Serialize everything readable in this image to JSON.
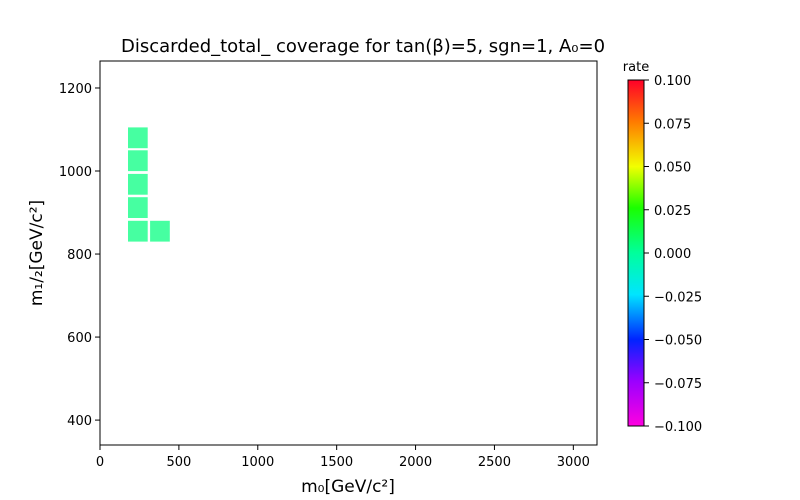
{
  "chart_data": {
    "type": "heatmap",
    "title": "Discarded_total_ coverage for tan(β)=5, sgn=1, A₀=0",
    "xlabel": "m₀[GeV/c²]",
    "ylabel": "m₁/₂[GeV/c²]",
    "xlim": [
      0,
      3150
    ],
    "ylim": [
      340,
      1265
    ],
    "xticks": [
      0,
      500,
      1000,
      1500,
      2000,
      2500,
      3000
    ],
    "yticks": [
      400,
      600,
      800,
      1000,
      1200
    ],
    "cell_size": [
      125,
      50
    ],
    "cells": [
      {
        "x": 240,
        "y": 1080,
        "value": 0.0
      },
      {
        "x": 240,
        "y": 1025,
        "value": 0.0
      },
      {
        "x": 240,
        "y": 968,
        "value": 0.0
      },
      {
        "x": 240,
        "y": 912,
        "value": 0.0
      },
      {
        "x": 240,
        "y": 855,
        "value": 0.0
      },
      {
        "x": 380,
        "y": 855,
        "value": 0.0
      }
    ],
    "colorbar": {
      "title": "rate",
      "range": [
        -0.1,
        0.1
      ],
      "ticks": [
        "0.100",
        "0.075",
        "0.050",
        "0.025",
        "0.000",
        "−0.025",
        "−0.050",
        "−0.075",
        "−0.100"
      ],
      "tick_values": [
        0.1,
        0.075,
        0.05,
        0.025,
        0.0,
        -0.025,
        -0.05,
        -0.075,
        -0.1
      ],
      "colormap": "gist_rainbow"
    },
    "grid": false,
    "cell_color": "#3cff9c"
  }
}
